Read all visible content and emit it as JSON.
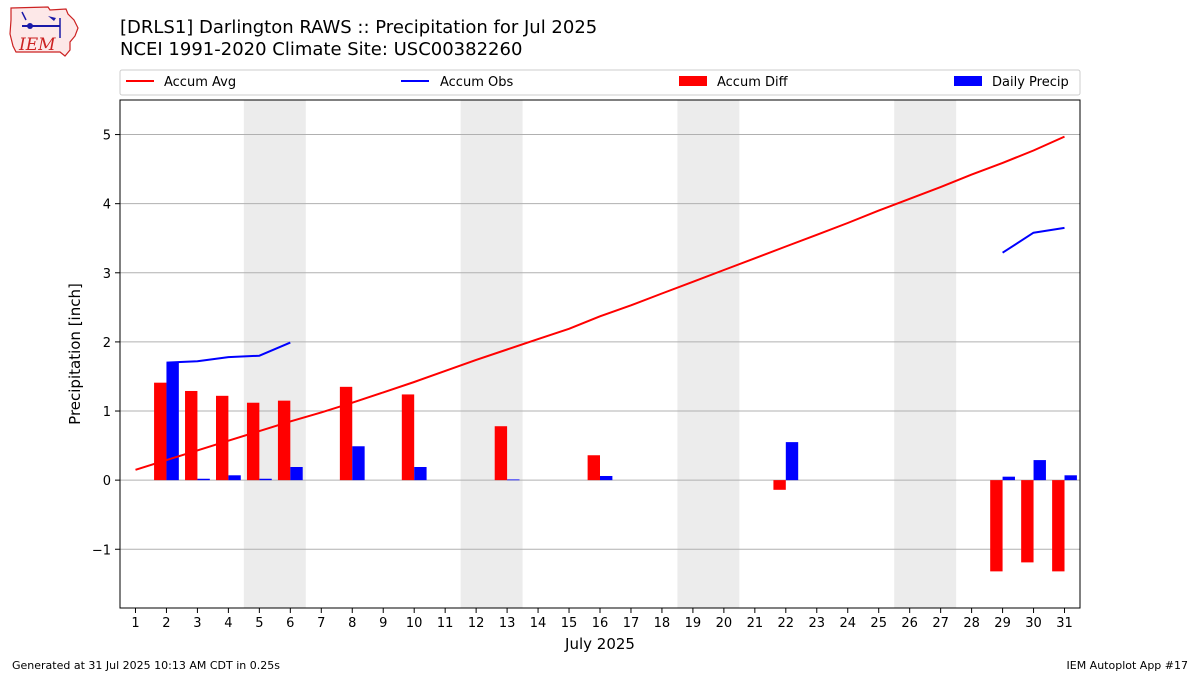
{
  "header": {
    "title_line1": "[DRLS1] Darlington RAWS :: Precipitation for Jul 2025",
    "title_line2": "NCEI 1991-2020 Climate Site: USC00382260"
  },
  "logo": {
    "text": "IEM"
  },
  "footer": {
    "left": "Generated at 31 Jul 2025 10:13 AM CDT in 0.25s",
    "right": "IEM Autoplot App #17"
  },
  "colors": {
    "accum_avg": "#ff0000",
    "accum_obs": "#0000ff",
    "accum_diff": "#ff0000",
    "daily_precip": "#0000ff",
    "weekend_shade": "#ececec",
    "grid": "#b0b0b0"
  },
  "chart_data": {
    "type": "bar+line",
    "title": "[DRLS1] Darlington RAWS :: Precipitation for Jul 2025",
    "subtitle": "NCEI 1991-2020 Climate Site: USC00382260",
    "xlabel": "July 2025",
    "ylabel": "Precipitation [inch]",
    "xlim": [
      0.5,
      31.5
    ],
    "ylim": [
      -1.85,
      5.5
    ],
    "yticks": [
      -1,
      0,
      1,
      2,
      3,
      4,
      5
    ],
    "ytick_labels": [
      "−1",
      "0",
      "1",
      "2",
      "3",
      "4",
      "5"
    ],
    "days": [
      1,
      2,
      3,
      4,
      5,
      6,
      7,
      8,
      9,
      10,
      11,
      12,
      13,
      14,
      15,
      16,
      17,
      18,
      19,
      20,
      21,
      22,
      23,
      24,
      25,
      26,
      27,
      28,
      29,
      30,
      31
    ],
    "y_grid": true,
    "weekend_shading": [
      [
        4.5,
        6.5
      ],
      [
        11.5,
        13.5
      ],
      [
        18.5,
        20.5
      ],
      [
        25.5,
        27.5
      ]
    ],
    "legend": {
      "position": "top",
      "entries": [
        "Accum Avg",
        "Accum Obs",
        "Accum Diff",
        "Daily Precip"
      ]
    },
    "series": [
      {
        "name": "Accum Avg",
        "kind": "line",
        "x": [
          1,
          2,
          3,
          4,
          5,
          6,
          7,
          8,
          9,
          10,
          11,
          12,
          13,
          14,
          15,
          16,
          17,
          18,
          19,
          20,
          21,
          22,
          23,
          24,
          25,
          26,
          27,
          28,
          29,
          30,
          31
        ],
        "values": [
          0.15,
          0.29,
          0.43,
          0.57,
          0.71,
          0.85,
          0.98,
          1.12,
          1.27,
          1.42,
          1.58,
          1.74,
          1.89,
          2.04,
          2.19,
          2.37,
          2.53,
          2.7,
          2.87,
          3.04,
          3.21,
          3.38,
          3.55,
          3.72,
          3.9,
          4.07,
          4.24,
          4.42,
          4.59,
          4.77,
          4.97
        ]
      },
      {
        "name": "Accum Obs",
        "kind": "line",
        "x": [
          1,
          2,
          3,
          4,
          5,
          6,
          7,
          8,
          9,
          10,
          11,
          12,
          13,
          14,
          15,
          16,
          17,
          18,
          19,
          20,
          21,
          22,
          23,
          24,
          25,
          26,
          27,
          28,
          29,
          30,
          31
        ],
        "values": [
          null,
          1.7,
          1.72,
          1.78,
          1.8,
          1.99,
          null,
          null,
          null,
          null,
          null,
          null,
          null,
          null,
          null,
          null,
          null,
          null,
          null,
          null,
          null,
          null,
          null,
          null,
          null,
          null,
          null,
          null,
          3.29,
          3.58,
          3.65
        ]
      },
      {
        "name": "Accum Diff",
        "kind": "bar",
        "x": [
          2,
          3,
          4,
          5,
          6,
          8,
          10,
          13,
          16,
          22,
          29,
          30,
          31
        ],
        "values": [
          1.41,
          1.29,
          1.22,
          1.12,
          1.15,
          1.35,
          1.24,
          0.78,
          0.36,
          -0.14,
          -1.32,
          -1.19,
          -1.32
        ]
      },
      {
        "name": "Daily Precip",
        "kind": "bar",
        "x": [
          2,
          3,
          4,
          5,
          6,
          8,
          10,
          13,
          16,
          22,
          29,
          30,
          31
        ],
        "values": [
          1.7,
          0.02,
          0.07,
          0.02,
          0.19,
          0.49,
          0.19,
          0.01,
          0.06,
          0.55,
          0.05,
          0.29,
          0.07
        ]
      }
    ]
  }
}
